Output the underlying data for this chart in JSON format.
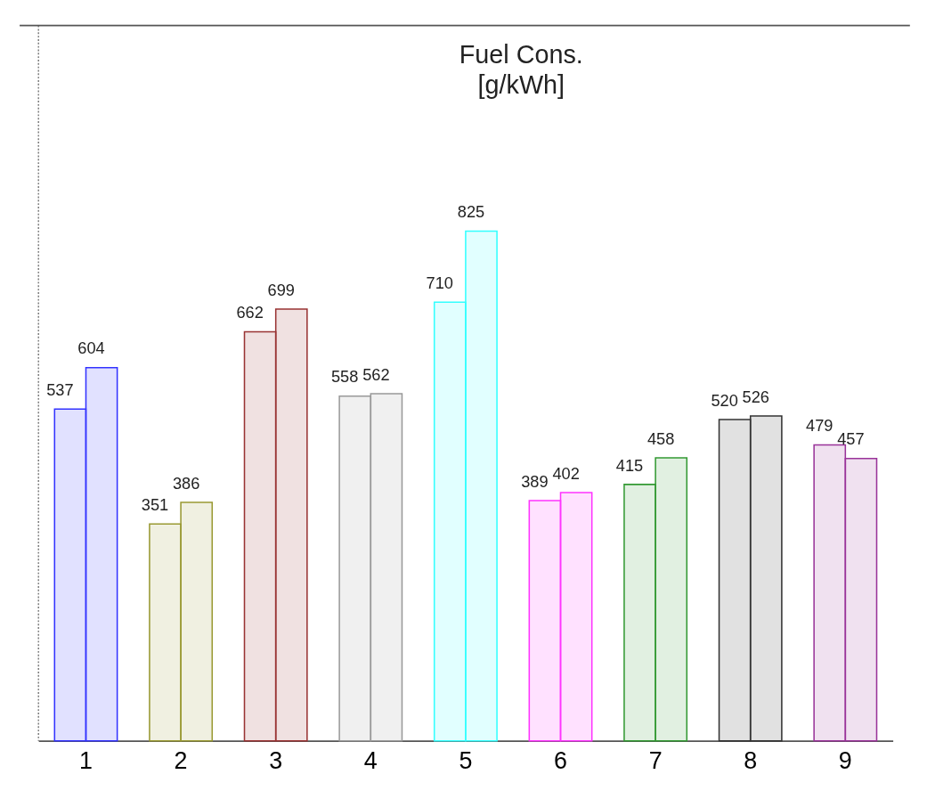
{
  "chart_data": {
    "type": "bar",
    "title": "Fuel Cons.\n[g/kWh]",
    "categories": [
      "1",
      "2",
      "3",
      "4",
      "5",
      "6",
      "7",
      "8",
      "9"
    ],
    "series": [
      {
        "colors": [
          "#3333ff",
          "#999933",
          "#993333",
          "#999999",
          "#33ffff",
          "#ff33ff",
          "#339933",
          "#333333",
          "#993399"
        ],
        "values": [
          537,
          351,
          662,
          558,
          710,
          389,
          415,
          520,
          479
        ]
      },
      {
        "colors": [
          "#3333ff",
          "#999933",
          "#993333",
          "#999999",
          "#33ffff",
          "#ff33ff",
          "#339933",
          "#333333",
          "#993399"
        ],
        "values": [
          604,
          386,
          699,
          562,
          825,
          402,
          458,
          526,
          457
        ]
      }
    ],
    "ylim": [
      0,
      1158
    ],
    "data_labels": true,
    "grid": false,
    "tick_labels": "x"
  }
}
